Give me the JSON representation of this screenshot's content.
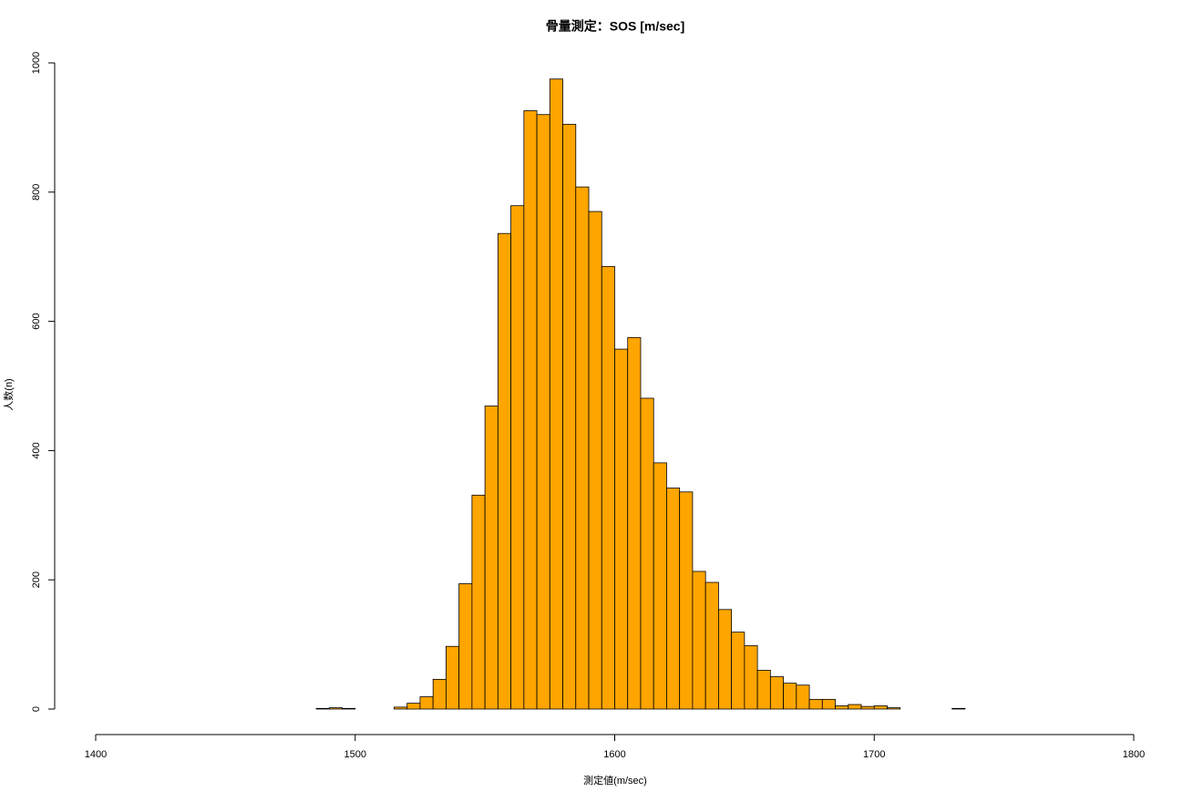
{
  "chart_data": {
    "type": "histogram",
    "title": "骨量測定：SOS [m/sec]",
    "xlabel": "測定値(m/sec)",
    "ylabel": "人数(n)",
    "bins": [
      1485,
      1490,
      1495,
      1500,
      1505,
      1510,
      1515,
      1520,
      1525,
      1530,
      1535,
      1540,
      1545,
      1550,
      1555,
      1560,
      1565,
      1570,
      1575,
      1580,
      1585,
      1590,
      1595,
      1600,
      1605,
      1610,
      1615,
      1620,
      1625,
      1630,
      1635,
      1640,
      1645,
      1650,
      1655,
      1660,
      1665,
      1670,
      1675,
      1680,
      1685,
      1690,
      1695,
      1700,
      1705,
      1710,
      1715,
      1720,
      1725,
      1730,
      1735
    ],
    "values": [
      1,
      2,
      1,
      0,
      0,
      0,
      3,
      9,
      19,
      46,
      97,
      194,
      331,
      469,
      736,
      779,
      926,
      920,
      975,
      905,
      808,
      770,
      685,
      557,
      575,
      481,
      381,
      342,
      336,
      213,
      196,
      154,
      119,
      98,
      60,
      50,
      40,
      37,
      15,
      15,
      5,
      7,
      4,
      5,
      2,
      0,
      0,
      0,
      0,
      1
    ],
    "color": "#ffa500",
    "xlim": [
      1400,
      1800
    ],
    "xticks": [
      1400,
      1500,
      1600,
      1700,
      1800
    ],
    "ylim": [
      0,
      1000
    ],
    "yticks": [
      0,
      200,
      400,
      600,
      800,
      1000
    ],
    "grid": false
  }
}
